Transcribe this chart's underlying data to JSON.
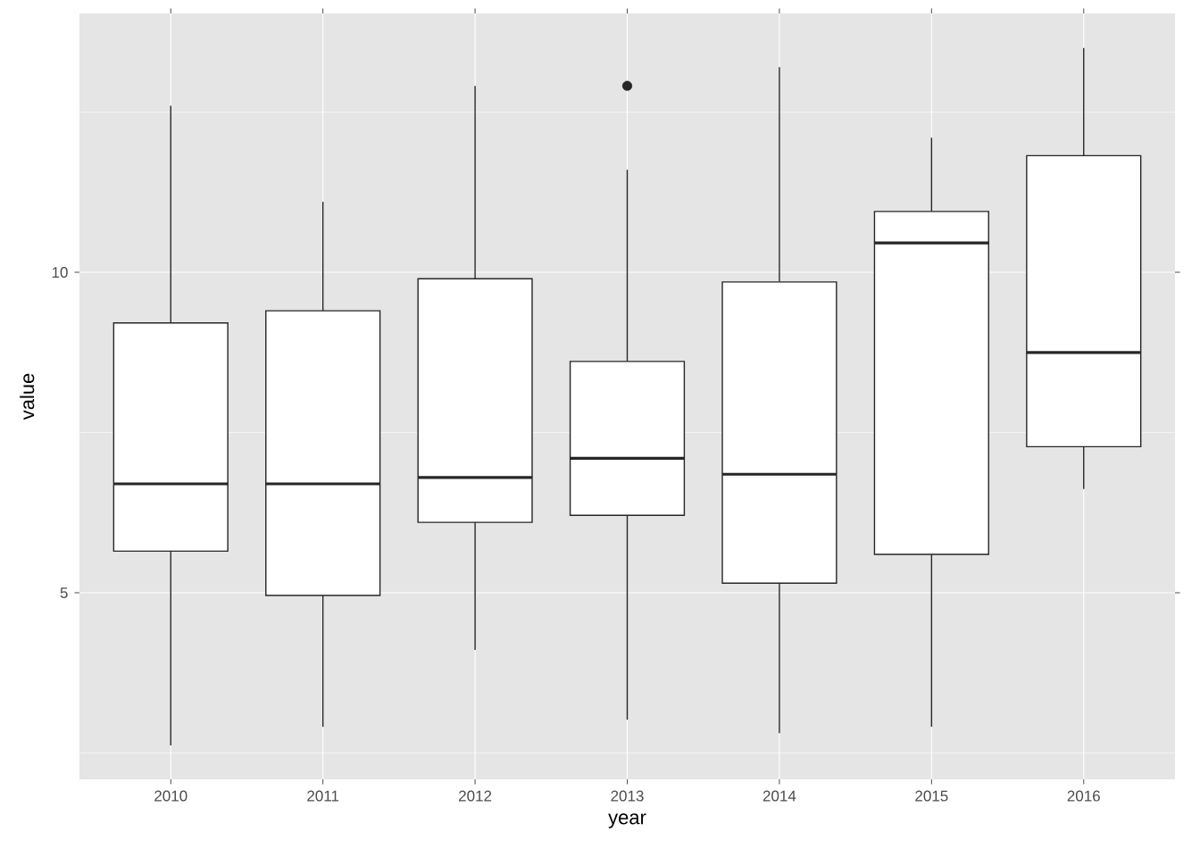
{
  "chart_data": {
    "type": "box",
    "xlabel": "year",
    "ylabel": "value",
    "categories": [
      "2010",
      "2011",
      "2012",
      "2013",
      "2014",
      "2015",
      "2016"
    ],
    "boxes": [
      {
        "low": 2.62,
        "q1": 5.65,
        "median": 6.7,
        "q3": 9.21,
        "high": 12.6
      },
      {
        "low": 2.91,
        "q1": 4.96,
        "median": 6.7,
        "q3": 9.4,
        "high": 11.1
      },
      {
        "low": 4.11,
        "q1": 6.1,
        "median": 6.8,
        "q3": 9.9,
        "high": 12.91
      },
      {
        "low": 3.02,
        "q1": 6.21,
        "median": 7.1,
        "q3": 8.61,
        "high": 11.6,
        "outliers": [
          12.91
        ]
      },
      {
        "low": 2.81,
        "q1": 5.15,
        "median": 6.85,
        "q3": 9.85,
        "high": 13.2
      },
      {
        "low": 2.91,
        "q1": 5.6,
        "median": 10.46,
        "q3": 10.95,
        "high": 12.1
      },
      {
        "low": 6.62,
        "q1": 7.28,
        "median": 8.75,
        "q3": 11.82,
        "high": 13.5
      }
    ],
    "ylim": [
      2.09,
      14.04
    ],
    "yticks": [
      {
        "value": 2.5,
        "label": null
      },
      5,
      {
        "value": 7.5,
        "label": null
      },
      10,
      {
        "value": 12.5,
        "label": null
      }
    ],
    "grid": true
  }
}
